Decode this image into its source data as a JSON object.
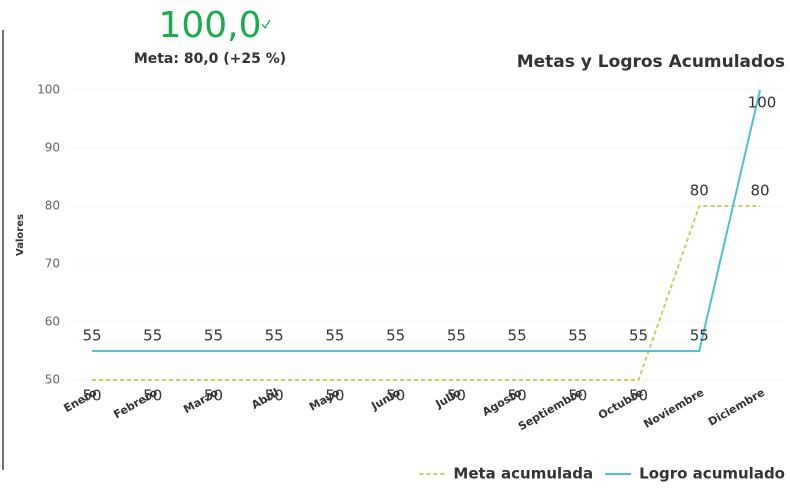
{
  "kpi": {
    "value": "100,0",
    "goal": "Meta: 80,0 (+25 %)"
  },
  "chart_data": {
    "type": "line",
    "title": "Metas y Logros Acumulados",
    "y_label": "Valores",
    "categories": [
      "Enero",
      "Febrero",
      "Marzo",
      "Abril",
      "Mayo",
      "Junio",
      "Julio",
      "Agosto",
      "Septiembre",
      "Octubre",
      "Noviembre",
      "Diciembre"
    ],
    "series": [
      {
        "name": "Meta acumulada",
        "color": "#c8cf5a",
        "dashed": true,
        "values": [
          50,
          50,
          50,
          50,
          50,
          50,
          50,
          50,
          50,
          50,
          80,
          80
        ]
      },
      {
        "name": "Logro acumulado",
        "color": "#4cc2d4",
        "dashed": false,
        "values": [
          55,
          55,
          55,
          55,
          55,
          55,
          55,
          55,
          55,
          55,
          55,
          100
        ]
      }
    ],
    "ylim": [
      50,
      100
    ],
    "yticks": [
      50,
      60,
      70,
      80,
      90,
      100
    ],
    "grid": true,
    "legend": "bottom-right"
  }
}
